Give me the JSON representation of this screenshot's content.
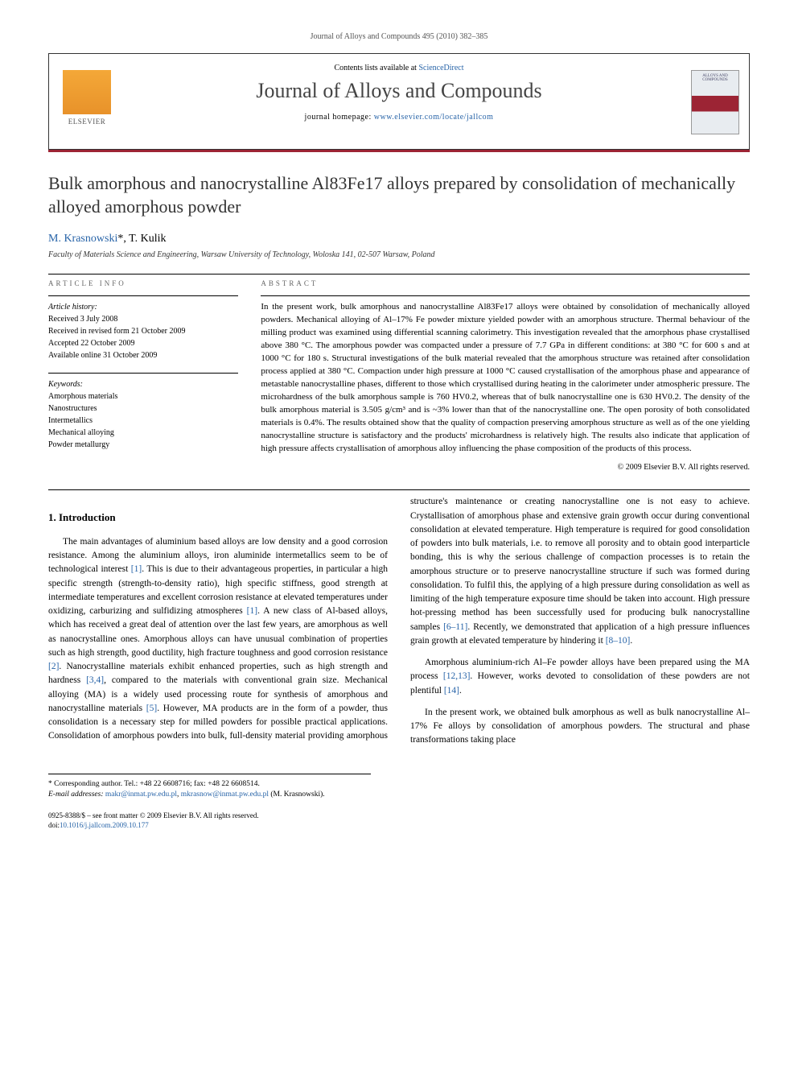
{
  "header": {
    "citation": "Journal of Alloys and Compounds 495 (2010) 382–385"
  },
  "contents_box": {
    "contents_text_prefix": "Contents lists available at ",
    "contents_link": "ScienceDirect",
    "journal_name": "Journal of Alloys and Compounds",
    "homepage_prefix": "journal homepage: ",
    "homepage_url": "www.elsevier.com/locate/jallcom",
    "elsevier_label": "ELSEVIER",
    "cover_text": "ALLOYS AND COMPOUNDS"
  },
  "article": {
    "title": "Bulk amorphous and nanocrystalline Al83Fe17 alloys prepared by consolidation of mechanically alloyed amorphous powder",
    "authors_html": "M. Krasnowski",
    "author_marker": "*",
    "author2": ", T. Kulik",
    "affiliation": "Faculty of Materials Science and Engineering, Warsaw University of Technology, Woloska 141, 02-507 Warsaw, Poland"
  },
  "info": {
    "section_label": "ARTICLE INFO",
    "history_label": "Article history:",
    "received": "Received 3 July 2008",
    "revised": "Received in revised form 21 October 2009",
    "accepted": "Accepted 22 October 2009",
    "online": "Available online 31 October 2009",
    "keywords_label": "Keywords:",
    "kw1": "Amorphous materials",
    "kw2": "Nanostructures",
    "kw3": "Intermetallics",
    "kw4": "Mechanical alloying",
    "kw5": "Powder metallurgy"
  },
  "abstract": {
    "section_label": "ABSTRACT",
    "text": "In the present work, bulk amorphous and nanocrystalline Al83Fe17 alloys were obtained by consolidation of mechanically alloyed powders. Mechanical alloying of Al–17% Fe powder mixture yielded powder with an amorphous structure. Thermal behaviour of the milling product was examined using differential scanning calorimetry. This investigation revealed that the amorphous phase crystallised above 380 °C. The amorphous powder was compacted under a pressure of 7.7 GPa in different conditions: at 380 °C for 600 s and at 1000 °C for 180 s. Structural investigations of the bulk material revealed that the amorphous structure was retained after consolidation process applied at 380 °C. Compaction under high pressure at 1000 °C caused crystallisation of the amorphous phase and appearance of metastable nanocrystalline phases, different to those which crystallised during heating in the calorimeter under atmospheric pressure. The microhardness of the bulk amorphous sample is 760 HV0.2, whereas that of bulk nanocrystalline one is 630 HV0.2. The density of the bulk amorphous material is 3.505 g/cm³ and is ~3% lower than that of the nanocrystalline one. The open porosity of both consolidated materials is 0.4%. The results obtained show that the quality of compaction preserving amorphous structure as well as of the one yielding nanocrystalline structure is satisfactory and the products' microhardness is relatively high. The results also indicate that application of high pressure affects crystallisation of amorphous alloy influencing the phase composition of the products of this process.",
    "copyright": "© 2009 Elsevier B.V. All rights reserved."
  },
  "introduction": {
    "heading": "1. Introduction",
    "p1_a": "The main advantages of aluminium based alloys are low density and a good corrosion resistance. Among the aluminium alloys, iron aluminide intermetallics seem to be of technological interest ",
    "ref1": "[1]",
    "p1_b": ". This is due to their advantageous properties, in particular a high specific strength (strength-to-density ratio), high specific stiffness, good strength at intermediate temperatures and excellent corrosion resistance at elevated temperatures under oxidizing, carburizing and sulfidizing atmospheres ",
    "ref1b": "[1]",
    "p1_c": ". A new class of Al-based alloys, which has received a great deal of attention over the last few years, are amorphous as well as nanocrystalline ones. Amorphous alloys can have unusual combination of properties such as high strength, good ductility, high fracture toughness and good corrosion resistance ",
    "ref2": "[2]",
    "p1_d": ". Nanocrystalline materials exhibit enhanced properties, such as high strength and hardness ",
    "ref34": "[3,4]",
    "p1_e": ", compared to the materials with conventional grain size. Mechanical alloying (MA) is a widely used processing route for synthesis of amorphous and nanocrystalline materials ",
    "ref5": "[5]",
    "p1_f": ". However, MA products are in the form of a powder, thus consolidation is a necessary step for milled powders for possible practical applications. Consolidation of amorphous powders into bulk, full-density material providing amorphous structure's maintenance or creating nanocrystalline one is not easy to achieve. Crystallisation of amorphous phase and extensive grain growth occur during conventional consolidation at elevated temperature. High temperature is required for good consolidation of powders into bulk materials, i.e. to remove all porosity and to obtain good interparticle bonding, this is why the serious challenge of compaction processes is to retain the amorphous structure or to preserve nanocrystalline structure if such was formed during consolidation. To fulfil this, the applying of a high pressure during consolidation as well as limiting of the high temperature exposure time should be taken into account. High pressure hot-pressing method has been successfully used for producing bulk nanocrystalline samples ",
    "ref611": "[6–11]",
    "p1_g": ". Recently, we demonstrated that application of a high pressure influences grain growth at elevated temperature by hindering it ",
    "ref810": "[8–10]",
    "p1_h": ".",
    "p2_a": "Amorphous aluminium-rich Al–Fe powder alloys have been prepared using the MA process ",
    "ref1213": "[12,13]",
    "p2_b": ". However, works devoted to consolidation of these powders are not plentiful ",
    "ref14": "[14]",
    "p2_c": ".",
    "p3": "In the present work, we obtained bulk amorphous as well as bulk nanocrystalline Al–17% Fe alloys by consolidation of amorphous powders. The structural and phase transformations taking place"
  },
  "footnotes": {
    "corresponding": "* Corresponding author. Tel.: +48 22 6608716; fax: +48 22 6608514.",
    "email_label": "E-mail addresses: ",
    "email1": "makr@inmat.pw.edu.pl",
    "sep": ", ",
    "email2": "mkrasnow@inmat.pw.edu.pl",
    "email_suffix": " (M. Krasnowski)."
  },
  "bottom": {
    "issn": "0925-8388/$ – see front matter © 2009 Elsevier B.V. All rights reserved.",
    "doi_prefix": "doi:",
    "doi": "10.1016/j.jallcom.2009.10.177"
  },
  "colors": {
    "accent_red": "#9c2434",
    "link_blue": "#2864a8",
    "elsevier_orange": "#f4a838"
  }
}
